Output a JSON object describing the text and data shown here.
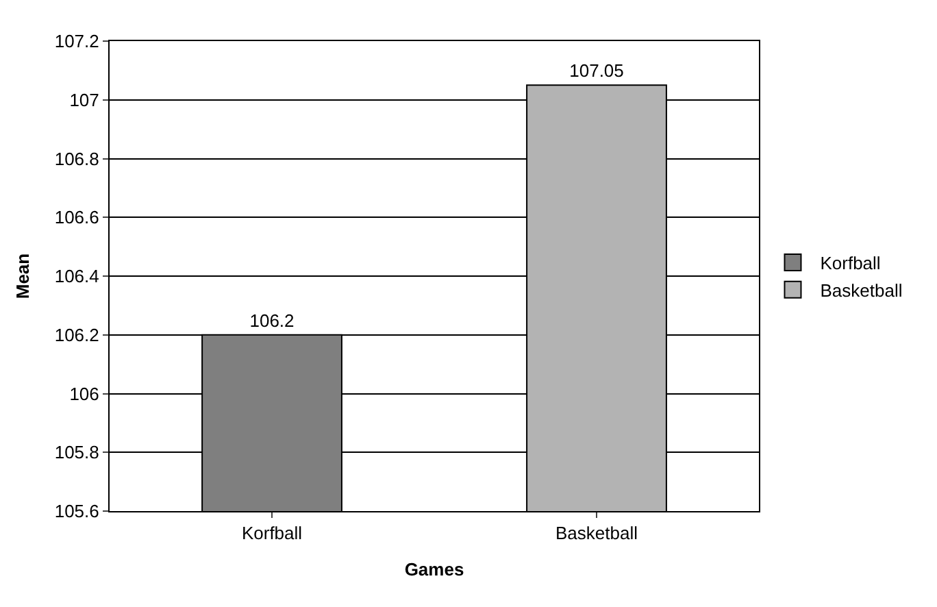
{
  "chart_data": {
    "type": "bar",
    "xlabel": "Games",
    "ylabel": "Mean",
    "categories": [
      "Korfball",
      "Basketball"
    ],
    "series": [
      {
        "name": "Korfball",
        "color": "#7f7f7f",
        "values": [
          106.2,
          null
        ]
      },
      {
        "name": "Basketball",
        "color": "#b3b3b3",
        "values": [
          null,
          107.05
        ]
      }
    ],
    "ylim": [
      105.6,
      107.2
    ],
    "yticks": [
      105.6,
      105.8,
      106,
      106.2,
      106.4,
      106.6,
      106.8,
      107,
      107.2
    ],
    "grid": "y",
    "legend": "right",
    "data_labels": true
  }
}
